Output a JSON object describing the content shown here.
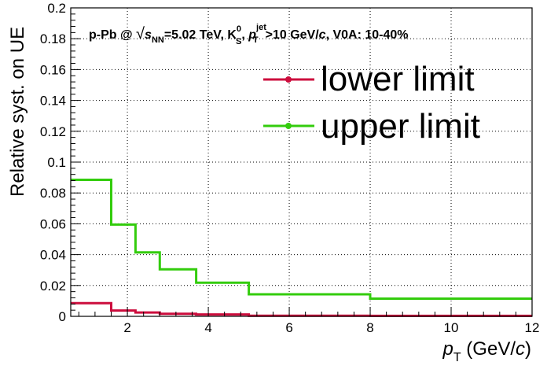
{
  "chart_data": {
    "type": "line",
    "title": "p-Pb @ √s_NN=5.02 TeV, K_S^0, p_T^jet>10 GeV/c, V0A: 10-40%",
    "title_parts": {
      "prefix": "p-Pb @ ",
      "sqrt": "√",
      "s": "s",
      "nn": "NN",
      "energy": "=5.02 TeV, K",
      "ks_sup": "0",
      "ks_sub": "S",
      "comma": ", ",
      "pt_p": "p",
      "pt_sub": "T",
      "jet_sup": "jet",
      "cut": ">10 GeV/",
      "c": "c",
      "centrality": ", V0A: 10-40%"
    },
    "xlabel": "p_T (GeV/c)",
    "xlabel_parts": {
      "p": "p",
      "sub": "T",
      "open": " (GeV/",
      "c": "c",
      "close": ")"
    },
    "ylabel": "Relative syst. on UE",
    "xlim": [
      0.6,
      12
    ],
    "ylim": [
      0,
      0.2
    ],
    "x_ticks": [
      2,
      4,
      6,
      8,
      10,
      12
    ],
    "y_ticks": [
      0,
      0.02,
      0.04,
      0.06,
      0.08,
      0.1,
      0.12,
      0.14,
      0.16,
      0.18,
      0.2
    ],
    "y_tick_labels": [
      "0",
      "0.02",
      "0.04",
      "0.06",
      "0.08",
      "0.1",
      "0.12",
      "0.14",
      "0.16",
      "0.18",
      "0.2"
    ],
    "grid": true,
    "legend_position": "top-right",
    "bin_edges": [
      0.6,
      1.6,
      2.2,
      2.8,
      3.7,
      5.0,
      8.0,
      12.0
    ],
    "series": [
      {
        "name": "lower limit",
        "color": "#cc0d3d",
        "values": [
          0.0085,
          0.0038,
          0.0025,
          0.0017,
          0.0012,
          0.0004,
          0.0003
        ]
      },
      {
        "name": "upper limit",
        "color": "#33cc0d",
        "values": [
          0.0885,
          0.0595,
          0.0415,
          0.0305,
          0.0218,
          0.0143,
          0.0115
        ]
      }
    ]
  }
}
